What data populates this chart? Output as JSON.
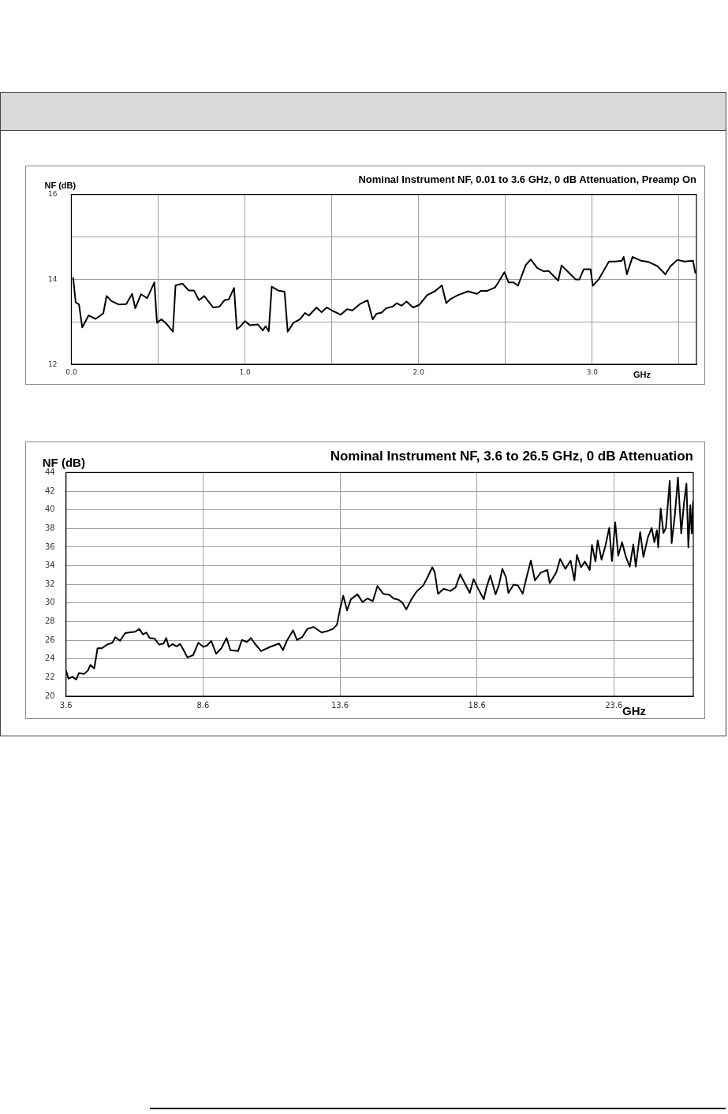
{
  "chart_data": [
    {
      "type": "line",
      "title": "Nominal Instrument NF, 0.01 to 3.6 GHz, 0 dB Attenuation, Preamp On",
      "xlabel": "GHz",
      "ylabel": "NF (dB)",
      "xlim": [
        0,
        3.6
      ],
      "ylim": [
        12,
        16
      ],
      "xticks": [
        {
          "value": 0,
          "label": "0.0"
        },
        {
          "value": 0.5,
          "label": null
        },
        {
          "value": 1,
          "label": "1.0"
        },
        {
          "value": 1.5,
          "label": null
        },
        {
          "value": 2,
          "label": "2.0"
        },
        {
          "value": 2.5,
          "label": null
        },
        {
          "value": 3,
          "label": "3.0"
        },
        {
          "value": 3.5,
          "label": null
        }
      ],
      "yticks": [
        12,
        {
          "value": 13,
          "label": null
        },
        14,
        {
          "value": 15,
          "label": null
        },
        16
      ],
      "grid": true,
      "series": [
        {
          "color": "#000000",
          "x": [
            0.01,
            0.025,
            0.044,
            0.063,
            0.099,
            0.14,
            0.184,
            0.203,
            0.231,
            0.272,
            0.316,
            0.35,
            0.368,
            0.401,
            0.437,
            0.478,
            0.493,
            0.519,
            0.549,
            0.585,
            0.6,
            0.64,
            0.676,
            0.706,
            0.735,
            0.765,
            0.816,
            0.853,
            0.882,
            0.907,
            0.937,
            0.953,
            0.975,
            1.0,
            1.029,
            1.074,
            1.103,
            1.119,
            1.137,
            1.154,
            1.191,
            1.228,
            1.246,
            1.279,
            1.316,
            1.346,
            1.368,
            1.412,
            1.441,
            1.471,
            1.5,
            1.551,
            1.588,
            1.618,
            1.662,
            1.706,
            1.735,
            1.757,
            1.787,
            1.813,
            1.85,
            1.875,
            1.901,
            1.931,
            1.968,
            2.004,
            2.049,
            2.093,
            2.134,
            2.159,
            2.181,
            2.226,
            2.285,
            2.336,
            2.358,
            2.395,
            2.44,
            2.459,
            2.494,
            2.518,
            2.547,
            2.572,
            2.617,
            2.646,
            2.683,
            2.72,
            2.749,
            2.804,
            2.823,
            2.867,
            2.904,
            2.926,
            2.951,
            2.99,
            3.003,
            3.037,
            3.096,
            3.133,
            3.17,
            3.181,
            3.199,
            3.232,
            3.28,
            3.325,
            3.376,
            3.421,
            3.45,
            3.491,
            3.531,
            3.58,
            3.594
          ],
          "values": [
            14.05,
            13.46,
            13.41,
            12.87,
            13.15,
            13.07,
            13.2,
            13.61,
            13.49,
            13.41,
            13.42,
            13.66,
            13.32,
            13.65,
            13.56,
            13.93,
            12.98,
            13.06,
            12.95,
            12.77,
            13.86,
            13.9,
            13.74,
            13.74,
            13.51,
            13.61,
            13.34,
            13.36,
            13.51,
            13.53,
            13.8,
            12.83,
            12.9,
            13.02,
            12.92,
            12.94,
            12.8,
            12.9,
            12.78,
            13.83,
            13.74,
            13.71,
            12.77,
            12.98,
            13.06,
            13.21,
            13.15,
            13.34,
            13.23,
            13.34,
            13.27,
            13.17,
            13.3,
            13.27,
            13.42,
            13.51,
            13.06,
            13.19,
            13.22,
            13.32,
            13.36,
            13.44,
            13.38,
            13.48,
            13.34,
            13.4,
            13.63,
            13.72,
            13.86,
            13.44,
            13.53,
            13.63,
            13.72,
            13.66,
            13.73,
            13.73,
            13.81,
            13.93,
            14.17,
            13.93,
            13.93,
            13.85,
            14.34,
            14.47,
            14.27,
            14.19,
            14.2,
            13.97,
            14.33,
            14.15,
            14.0,
            14.0,
            14.24,
            14.24,
            13.85,
            14.0,
            14.42,
            14.42,
            14.44,
            14.53,
            14.12,
            14.53,
            14.44,
            14.41,
            14.31,
            14.12,
            14.31,
            14.46,
            14.42,
            14.44,
            14.14
          ]
        }
      ]
    },
    {
      "type": "line",
      "title": "Nominal Instrument NF, 3.6 to 26.5 GHz, 0 dB Attenuation",
      "xlabel": "GHz",
      "ylabel": "NF (dB)",
      "xlim": [
        3.6,
        26.5
      ],
      "ylim": [
        20,
        44
      ],
      "xticks": [
        3.6,
        8.6,
        13.6,
        18.6,
        23.6
      ],
      "yticks": [
        20,
        22,
        24,
        26,
        28,
        30,
        32,
        34,
        36,
        38,
        40,
        42,
        44
      ],
      "grid": true,
      "series": [
        {
          "color": "#000000",
          "x": [
            3.6,
            3.69,
            3.83,
            3.97,
            4.07,
            4.26,
            4.4,
            4.49,
            4.63,
            4.75,
            4.91,
            5.1,
            5.29,
            5.4,
            5.57,
            5.76,
            5.9,
            6.13,
            6.27,
            6.41,
            6.53,
            6.65,
            6.83,
            7.0,
            7.16,
            7.26,
            7.35,
            7.49,
            7.63,
            7.77,
            7.91,
            8.03,
            8.24,
            8.43,
            8.61,
            8.75,
            8.9,
            9.08,
            9.27,
            9.46,
            9.6,
            9.88,
            10.02,
            10.21,
            10.35,
            10.49,
            10.72,
            11.05,
            11.38,
            11.52,
            11.66,
            11.89,
            12.03,
            12.22,
            12.41,
            12.64,
            12.93,
            13.16,
            13.35,
            13.49,
            13.6,
            13.72,
            13.86,
            14.0,
            14.24,
            14.42,
            14.61,
            14.8,
            14.97,
            15.18,
            15.41,
            15.55,
            15.74,
            15.88,
            16.02,
            16.21,
            16.4,
            16.64,
            16.78,
            16.97,
            17.06,
            17.18,
            17.39,
            17.63,
            17.82,
            17.99,
            18.18,
            18.34,
            18.48,
            18.62,
            18.85,
            18.95,
            19.09,
            19.28,
            19.4,
            19.53,
            19.66,
            19.75,
            19.94,
            20.1,
            20.27,
            20.41,
            20.57,
            20.72,
            20.93,
            21.17,
            21.26,
            21.5,
            21.64,
            21.83,
            22.02,
            22.16,
            22.25,
            22.4,
            22.54,
            22.72,
            22.8,
            22.93,
            23.01,
            23.15,
            23.29,
            23.43,
            23.53,
            23.65,
            23.76,
            23.9,
            24.04,
            24.18,
            24.31,
            24.4,
            24.56,
            24.68,
            24.84,
            24.98,
            25.08,
            25.17,
            25.22,
            25.31,
            25.41,
            25.5,
            25.64,
            25.71,
            25.83,
            25.94,
            26.06,
            26.16,
            26.25,
            26.32,
            26.39,
            26.44,
            26.49,
            26.5
          ],
          "values": [
            22.76,
            21.87,
            22.08,
            21.78,
            22.47,
            22.38,
            22.76,
            23.36,
            22.97,
            25.14,
            25.14,
            25.53,
            25.73,
            26.33,
            25.94,
            26.77,
            26.83,
            26.92,
            27.22,
            26.63,
            26.83,
            26.24,
            26.18,
            25.53,
            25.65,
            26.24,
            25.29,
            25.59,
            25.35,
            25.59,
            24.84,
            24.16,
            24.4,
            25.73,
            25.29,
            25.44,
            25.94,
            24.55,
            25.14,
            26.24,
            24.93,
            24.84,
            26.03,
            25.82,
            26.24,
            25.65,
            24.84,
            25.29,
            25.65,
            24.93,
            25.94,
            27.07,
            26.03,
            26.33,
            27.22,
            27.43,
            26.83,
            27.01,
            27.22,
            27.67,
            29.3,
            30.78,
            29.21,
            30.4,
            30.93,
            30.1,
            30.49,
            30.19,
            31.82,
            30.99,
            30.87,
            30.49,
            30.34,
            30.04,
            29.3,
            30.4,
            31.23,
            31.88,
            32.65,
            33.84,
            33.31,
            30.99,
            31.53,
            31.29,
            31.67,
            33.07,
            31.97,
            31.08,
            32.56,
            31.67,
            30.4,
            31.67,
            32.95,
            30.93,
            31.88,
            33.66,
            32.77,
            31.08,
            31.97,
            31.88,
            30.99,
            32.71,
            34.56,
            32.42,
            33.25,
            33.55,
            32.12,
            33.31,
            34.73,
            33.66,
            34.56,
            32.42,
            35.15,
            33.84,
            34.44,
            33.55,
            36.22,
            34.44,
            36.72,
            34.65,
            36.13,
            38.06,
            34.5,
            38.65,
            35.09,
            36.52,
            34.94,
            33.9,
            36.28,
            33.9,
            37.61,
            34.94,
            37.02,
            38.06,
            36.52,
            37.82,
            35.98,
            40.14,
            37.52,
            38.06,
            43.11,
            36.43,
            39.54,
            43.47,
            37.47,
            40.73,
            42.81,
            35.98,
            40.5,
            37.47,
            40.88,
            37.47
          ]
        }
      ]
    }
  ]
}
